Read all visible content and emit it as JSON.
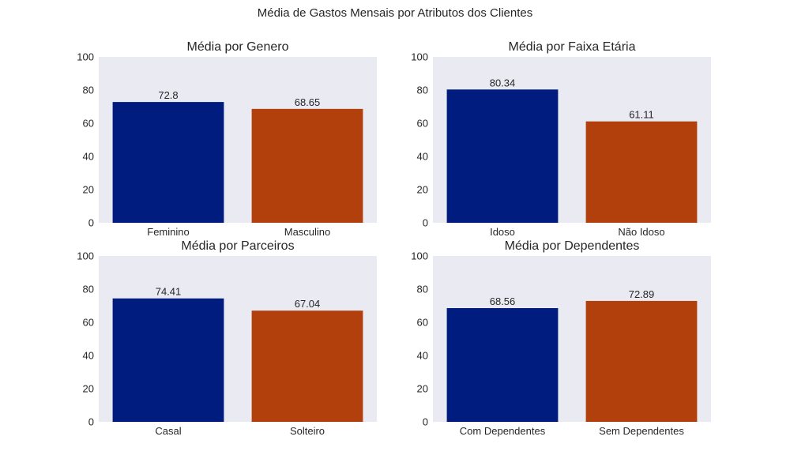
{
  "figure": {
    "suptitle": "Média de Gastos Mensais por Atributos dos Clientes"
  },
  "colors": {
    "background": "#ffffff",
    "axes_face": "#eaeaf2",
    "bar_first": "#001c7f",
    "bar_second": "#b1400d",
    "text": "#262626"
  },
  "chart_data": [
    {
      "type": "bar",
      "title": "Média por Genero",
      "categories": [
        "Feminino",
        "Masculino"
      ],
      "values": [
        72.8,
        68.65
      ],
      "value_labels": [
        "72.8",
        "68.65"
      ],
      "bar_colors": [
        "#001c7f",
        "#b1400d"
      ],
      "xlabel": "",
      "ylabel": "",
      "ylim": [
        0,
        100
      ],
      "yticks": [
        0,
        20,
        40,
        60,
        80,
        100
      ],
      "grid": false,
      "legend": null
    },
    {
      "type": "bar",
      "title": "Média por Faixa Etária",
      "categories": [
        "Idoso",
        "Não Idoso"
      ],
      "values": [
        80.34,
        61.11
      ],
      "value_labels": [
        "80.34",
        "61.11"
      ],
      "bar_colors": [
        "#001c7f",
        "#b1400d"
      ],
      "xlabel": "",
      "ylabel": "",
      "ylim": [
        0,
        100
      ],
      "yticks": [
        0,
        20,
        40,
        60,
        80,
        100
      ],
      "grid": false,
      "legend": null
    },
    {
      "type": "bar",
      "title": "Média por Parceiros",
      "categories": [
        "Casal",
        "Solteiro"
      ],
      "values": [
        74.41,
        67.04
      ],
      "value_labels": [
        "74.41",
        "67.04"
      ],
      "bar_colors": [
        "#001c7f",
        "#b1400d"
      ],
      "xlabel": "",
      "ylabel": "",
      "ylim": [
        0,
        100
      ],
      "yticks": [
        0,
        20,
        40,
        60,
        80,
        100
      ],
      "grid": false,
      "legend": null
    },
    {
      "type": "bar",
      "title": "Média por Dependentes",
      "categories": [
        "Com Dependentes",
        "Sem Dependentes"
      ],
      "values": [
        68.56,
        72.89
      ],
      "value_labels": [
        "68.56",
        "72.89"
      ],
      "bar_colors": [
        "#001c7f",
        "#b1400d"
      ],
      "xlabel": "",
      "ylabel": "",
      "ylim": [
        0,
        100
      ],
      "yticks": [
        0,
        20,
        40,
        60,
        80,
        100
      ],
      "grid": false,
      "legend": null
    }
  ]
}
